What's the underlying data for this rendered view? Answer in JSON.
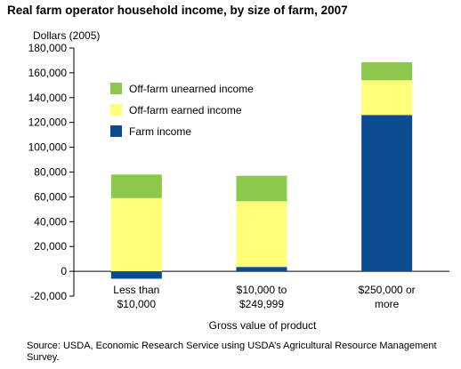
{
  "chart_data": {
    "type": "bar",
    "stacked": true,
    "title": "Real farm operator household income, by size of farm, 2007",
    "ylabel": "Dollars (2005)",
    "xlabel": "Gross value of product",
    "categories": [
      [
        "Less than",
        "$10,000"
      ],
      [
        "$10,000 to",
        "$249,999"
      ],
      [
        "$250,000 or",
        "more"
      ]
    ],
    "series": [
      {
        "name": "Farm income",
        "color": "#0b4b8f",
        "values": [
          -6000,
          3500,
          126000
        ]
      },
      {
        "name": "Off-farm earned income",
        "color": "#ffff7a",
        "values": [
          59000,
          53000,
          28000
        ]
      },
      {
        "name": "Off-farm unearned income",
        "color": "#8cc84b",
        "values": [
          19000,
          20500,
          14500
        ]
      }
    ],
    "ylim": [
      -20000,
      180000
    ],
    "yticks": [
      -20000,
      0,
      20000,
      40000,
      60000,
      80000,
      100000,
      120000,
      140000,
      160000,
      180000
    ],
    "ytick_labels": [
      "-20,000",
      "0",
      "20,000",
      "40,000",
      "60,000",
      "80,000",
      "100,000",
      "120,000",
      "140,000",
      "160,000",
      "180,000"
    ],
    "legend": {
      "placement": "upper-left",
      "order": [
        "Off-farm unearned income",
        "Off-farm earned income",
        "Farm income"
      ]
    },
    "grid": false
  },
  "source": "Source:  USDA, Economic Research Service using USDA’s Agricultural Resource Management Survey."
}
